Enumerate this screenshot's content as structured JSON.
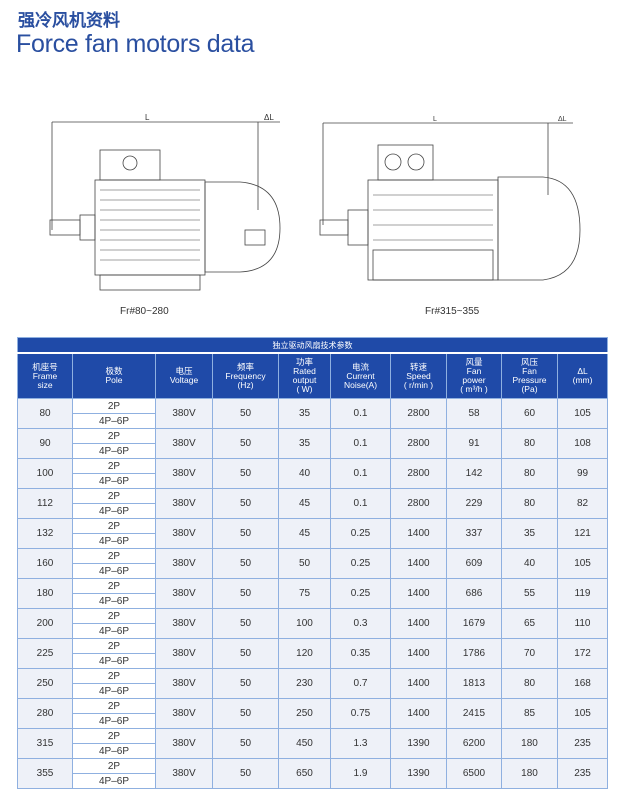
{
  "title_cn": "强冷风机资料",
  "title_en": "Force fan motors data",
  "drawings": [
    {
      "caption": "Fr#80~280",
      "dim_L": "L",
      "dim_dL": "ΔL"
    },
    {
      "caption": "Fr#315~355",
      "dim_L": "L",
      "dim_dL": "ΔL"
    }
  ],
  "table": {
    "caption": "独立驱动风扇技术参数",
    "headers": [
      [
        "机座号",
        "Frame",
        "size"
      ],
      [
        "极数",
        "Pole"
      ],
      [
        "电压",
        "Voltage"
      ],
      [
        "频率",
        "Frequency",
        "(Hz)"
      ],
      [
        "功率",
        "Rated",
        "output",
        "( W)"
      ],
      [
        "电流",
        "Current",
        "Noise(A)"
      ],
      [
        "转速",
        "Speed",
        "( r/min )"
      ],
      [
        "风量",
        "Fan",
        "power",
        "( m³/h )"
      ],
      [
        "风压",
        "Fan",
        "Pressure",
        "(Pa)"
      ],
      [
        "ΔL",
        "(mm)"
      ]
    ],
    "pole_top": "2P",
    "pole_bottom": "4P–6P",
    "rows": [
      [
        "80",
        "380V",
        "50",
        "35",
        "0.1",
        "2800",
        "58",
        "60",
        "105"
      ],
      [
        "90",
        "380V",
        "50",
        "35",
        "0.1",
        "2800",
        "91",
        "80",
        "108"
      ],
      [
        "100",
        "380V",
        "50",
        "40",
        "0.1",
        "2800",
        "142",
        "80",
        "99"
      ],
      [
        "112",
        "380V",
        "50",
        "45",
        "0.1",
        "2800",
        "229",
        "80",
        "82"
      ],
      [
        "132",
        "380V",
        "50",
        "45",
        "0.25",
        "1400",
        "337",
        "35",
        "121"
      ],
      [
        "160",
        "380V",
        "50",
        "50",
        "0.25",
        "1400",
        "609",
        "40",
        "105"
      ],
      [
        "180",
        "380V",
        "50",
        "75",
        "0.25",
        "1400",
        "686",
        "55",
        "119"
      ],
      [
        "200",
        "380V",
        "50",
        "100",
        "0.3",
        "1400",
        "1679",
        "65",
        "110"
      ],
      [
        "225",
        "380V",
        "50",
        "120",
        "0.35",
        "1400",
        "1786",
        "70",
        "172"
      ],
      [
        "250",
        "380V",
        "50",
        "230",
        "0.7",
        "1400",
        "1813",
        "80",
        "168"
      ],
      [
        "280",
        "380V",
        "50",
        "250",
        "0.75",
        "1400",
        "2415",
        "85",
        "105"
      ],
      [
        "315",
        "380V",
        "50",
        "450",
        "1.3",
        "1390",
        "6200",
        "180",
        "235"
      ],
      [
        "355",
        "380V",
        "50",
        "650",
        "1.9",
        "1390",
        "6500",
        "180",
        "235"
      ]
    ]
  },
  "colors": {
    "accent": "#2a4fa0",
    "header_bg": "#1f4aa8",
    "cell_bg": "#eef1f8",
    "border": "#8fb0e0"
  }
}
